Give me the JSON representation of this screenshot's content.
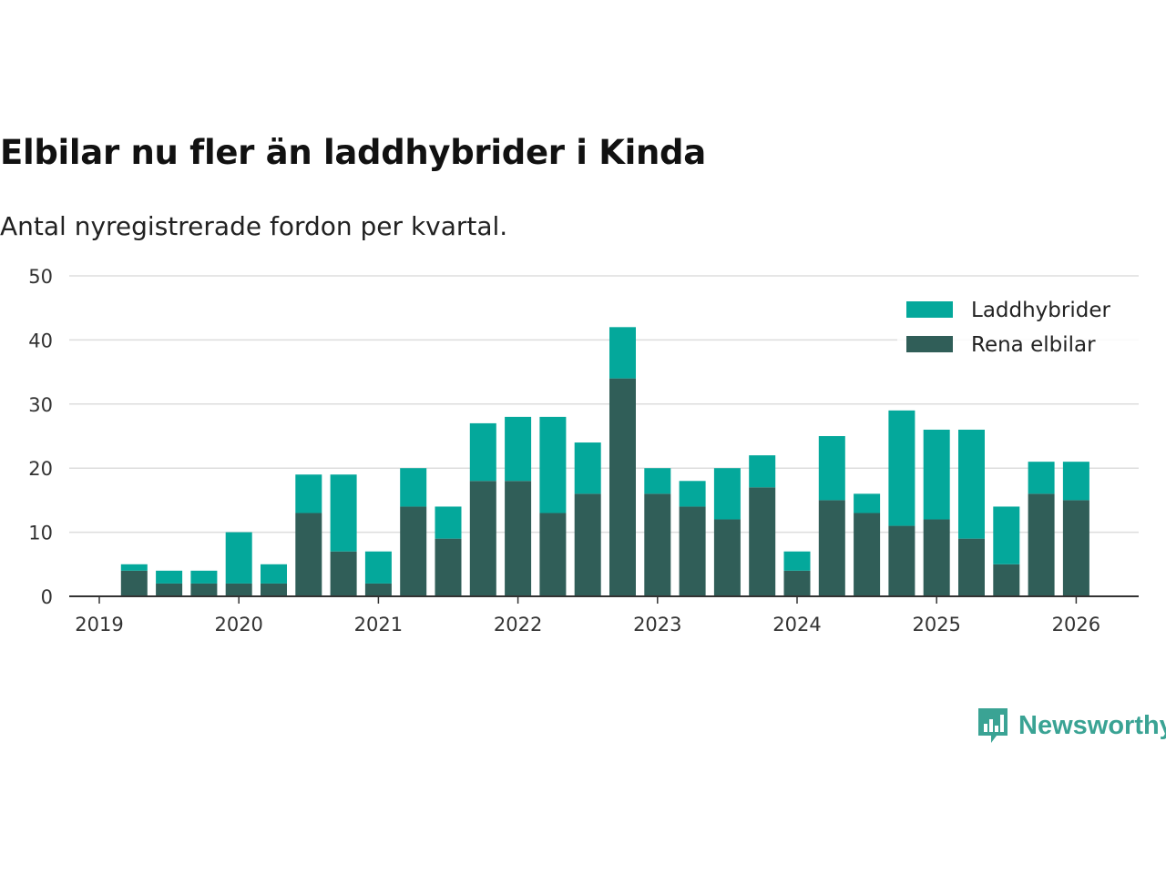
{
  "title": "Elbilar nu fler än laddhybrider i Kinda",
  "subtitle": "Antal nyregistrerade fordon per kvartal.",
  "brand": "Newsworthy",
  "colors": {
    "laddhybrider": "#04a89b",
    "elbilar": "#305e58",
    "brand": "#3aa394"
  },
  "chart_data": {
    "type": "bar",
    "stacked": true,
    "title": "Elbilar nu fler än laddhybrider i Kinda",
    "xlabel": "",
    "ylabel": "",
    "ylim": [
      0,
      50
    ],
    "yticks": [
      0,
      10,
      20,
      30,
      40,
      50
    ],
    "xticks": [
      "2019",
      "2020",
      "2021",
      "2022",
      "2023",
      "2024",
      "2025",
      "2026"
    ],
    "legend_position": "top-right",
    "categories": [
      "2019 Q2",
      "2019 Q3",
      "2019 Q4",
      "2020 Q1",
      "2020 Q2",
      "2020 Q3",
      "2020 Q4",
      "2021 Q1",
      "2021 Q2",
      "2021 Q3",
      "2021 Q4",
      "2022 Q1",
      "2022 Q2",
      "2022 Q3",
      "2022 Q4",
      "2023 Q1",
      "2023 Q2",
      "2023 Q3",
      "2023 Q4",
      "2024 Q1",
      "2024 Q2",
      "2024 Q3",
      "2024 Q4",
      "2025 Q1",
      "2025 Q2",
      "2025 Q3",
      "2025 Q4",
      "2026 Q1"
    ],
    "series": [
      {
        "name": "Rena elbilar",
        "values": [
          4,
          2,
          2,
          2,
          2,
          13,
          7,
          2,
          14,
          9,
          18,
          18,
          13,
          16,
          34,
          16,
          14,
          12,
          17,
          4,
          15,
          13,
          11,
          12,
          9,
          5,
          16,
          15
        ]
      },
      {
        "name": "Laddhybrider",
        "values": [
          1,
          2,
          2,
          8,
          3,
          6,
          12,
          5,
          6,
          5,
          9,
          10,
          15,
          8,
          8,
          4,
          4,
          8,
          5,
          3,
          10,
          3,
          18,
          14,
          17,
          9,
          5,
          6
        ]
      }
    ]
  }
}
